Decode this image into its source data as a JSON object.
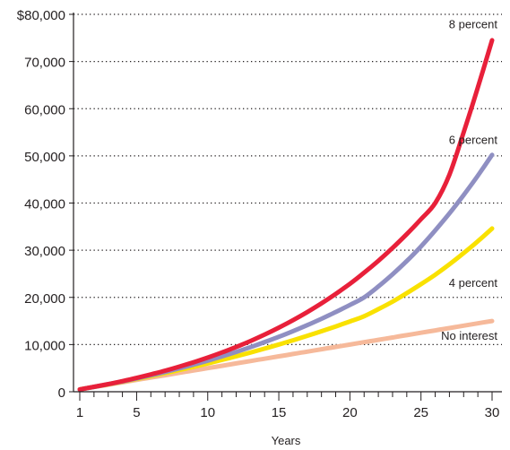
{
  "chart_data": {
    "type": "line",
    "xlabel": "Years",
    "ylabel": "",
    "xlim": [
      1,
      30
    ],
    "ylim": [
      0,
      80000
    ],
    "x_ticks": [
      1,
      5,
      10,
      15,
      20,
      25,
      30
    ],
    "x_minor_ticks": [
      2,
      3,
      4,
      6,
      7,
      8,
      9,
      11,
      12,
      13,
      14,
      16,
      17,
      18,
      19,
      21,
      22,
      23,
      24,
      26,
      27,
      28,
      29
    ],
    "y_ticks": [
      0,
      10000,
      20000,
      30000,
      40000,
      50000,
      60000,
      70000,
      80000
    ],
    "y_tick_labels": [
      "0",
      "10,000",
      "20,000",
      "30,000",
      "40,000",
      "50,000",
      "60,000",
      "70,000",
      "$80,000"
    ],
    "grid": "horizontal dotted",
    "legend": "inline labels at right end of each line",
    "x": [
      1,
      2,
      3,
      4,
      5,
      6,
      7,
      8,
      9,
      10,
      11,
      12,
      13,
      14,
      15,
      16,
      17,
      18,
      19,
      20,
      21,
      22,
      23,
      24,
      25,
      26,
      27,
      28,
      29,
      30
    ],
    "series": [
      {
        "name": "8 percent",
        "color": "#e8203a",
        "values": [
          500,
          1040,
          1620,
          2240,
          2930,
          3670,
          4460,
          5320,
          6240,
          7240,
          8320,
          9490,
          10740,
          12100,
          13580,
          15170,
          16880,
          18730,
          20740,
          22880,
          25230,
          27750,
          30480,
          33410,
          36580,
          40000,
          46000,
          55000,
          64500,
          74500
        ]
      },
      {
        "name": "6 percent",
        "color": "#8f8fc2",
        "values": [
          500,
          1030,
          1590,
          2190,
          2820,
          3490,
          4200,
          4950,
          5750,
          6590,
          7490,
          8440,
          9450,
          10520,
          11640,
          12840,
          14120,
          15470,
          16900,
          18400,
          20000,
          22300,
          24900,
          27700,
          30800,
          34200,
          37800,
          41700,
          45800,
          50200
        ]
      },
      {
        "name": "4 percent",
        "color": "#f9e100",
        "values": [
          500,
          1020,
          1560,
          2120,
          2710,
          3320,
          3950,
          4610,
          5290,
          6000,
          6740,
          7510,
          8310,
          9140,
          10010,
          10910,
          11850,
          12820,
          13840,
          14900,
          16000,
          17500,
          19100,
          20900,
          22800,
          24800,
          27000,
          29400,
          31900,
          34600
        ]
      },
      {
        "name": "No interest",
        "color": "#f6b99a",
        "values": [
          500,
          1000,
          1500,
          2000,
          2500,
          3000,
          3500,
          4000,
          4500,
          5000,
          5500,
          6000,
          6500,
          7000,
          7500,
          8000,
          8500,
          9000,
          9500,
          10000,
          10500,
          11000,
          11500,
          12000,
          12500,
          13000,
          13500,
          14000,
          14500,
          15000
        ]
      }
    ],
    "series_label_anchor": [
      {
        "name": "8 percent",
        "x": 30,
        "y": 78000
      },
      {
        "name": "6 percent",
        "x": 30,
        "y": 53500
      },
      {
        "name": "4 percent",
        "x": 30,
        "y": 23200
      },
      {
        "name": "No interest",
        "x": 30,
        "y": 12000
      }
    ]
  }
}
